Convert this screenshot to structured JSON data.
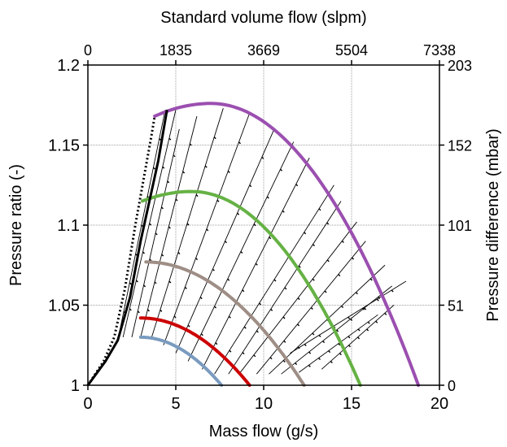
{
  "chart_data": {
    "type": "line",
    "xlabel": "Mass flow (g/s)",
    "ylabel": "Pressure ratio (-)",
    "x2label": "Standard volume flow (slpm)",
    "y2label": "Pressure difference (mbar)",
    "xlim": [
      0,
      20
    ],
    "ylim": [
      1,
      1.2
    ],
    "xticks": [
      0,
      5,
      10,
      15,
      20
    ],
    "xtick_labels": [
      "0",
      "5",
      "10",
      "15",
      "20"
    ],
    "yticks": [
      1,
      1.05,
      1.1,
      1.15,
      1.2
    ],
    "ytick_labels": [
      "1",
      "1.05",
      "1.1",
      "1.15",
      "1.2"
    ],
    "x2tick_labels": [
      "0",
      "1835",
      "3669",
      "5504",
      "7338"
    ],
    "y2tick_labels": [
      "0",
      "51",
      "101",
      "152",
      "203"
    ],
    "grid": true,
    "speed_lines": [
      {
        "color": "#7a9bbf",
        "peak": [
          3.0,
          1.03
        ],
        "end": [
          7.6,
          1.0
        ]
      },
      {
        "color": "#cc0000",
        "peak": [
          3.0,
          1.042
        ],
        "end": [
          9.2,
          1.0
        ]
      },
      {
        "color": "#9e8e86",
        "peak": [
          3.3,
          1.077
        ],
        "end": [
          12.3,
          1.0
        ]
      },
      {
        "color": "#66b245",
        "peak": [
          3.1,
          1.115
        ],
        "peak_x": 5.9,
        "peak_y": 1.121,
        "end": [
          15.5,
          1.0
        ]
      },
      {
        "color": "#9b4fb0",
        "peak": [
          3.8,
          1.168
        ],
        "peak_x": 7.0,
        "peak_y": 1.176,
        "end": [
          18.8,
          1.0
        ]
      }
    ],
    "surge_lines": [
      {
        "style": "solid",
        "width": 3,
        "x": [
          0,
          1.0,
          1.7,
          2.4,
          3.0,
          4.0,
          4.5
        ],
        "y": [
          1,
          1.015,
          1.028,
          1.055,
          1.09,
          1.14,
          1.172
        ]
      },
      {
        "style": "dotted",
        "width": 3,
        "x": [
          0,
          0.9,
          1.5,
          2.1,
          2.7,
          3.6,
          3.8
        ],
        "y": [
          1,
          1.015,
          1.03,
          1.06,
          1.1,
          1.155,
          1.168
        ]
      }
    ],
    "throttle_lines": [
      {
        "from": [
          1.7,
          1.028
        ],
        "to": [
          4.4,
          1.172
        ]
      },
      {
        "from": [
          2.0,
          1.03
        ],
        "to": [
          5.0,
          1.172
        ]
      },
      {
        "from": [
          2.5,
          1.03
        ],
        "to": [
          5.2,
          1.16
        ]
      },
      {
        "from": [
          3.0,
          1.03
        ],
        "to": [
          6.2,
          1.168
        ]
      },
      {
        "from": [
          3.6,
          1.029
        ],
        "to": [
          7.7,
          1.173
        ]
      },
      {
        "from": [
          4.3,
          1.025
        ],
        "to": [
          9.2,
          1.17
        ]
      },
      {
        "from": [
          5.0,
          1.02
        ],
        "to": [
          10.6,
          1.16
        ]
      },
      {
        "from": [
          5.7,
          1.015
        ],
        "to": [
          11.7,
          1.152
        ]
      },
      {
        "from": [
          6.5,
          1.01
        ],
        "to": [
          12.6,
          1.142
        ]
      },
      {
        "from": [
          7.2,
          1.007
        ],
        "to": [
          14.0,
          1.125
        ]
      },
      {
        "from": [
          8.0,
          1.007
        ],
        "to": [
          14.4,
          1.115
        ]
      },
      {
        "from": [
          8.6,
          1.007
        ],
        "to": [
          15.3,
          1.102
        ]
      },
      {
        "from": [
          9.6,
          1.007
        ],
        "to": [
          15.8,
          1.09
        ]
      },
      {
        "from": [
          10.3,
          1.007
        ],
        "to": [
          16.9,
          1.075
        ]
      },
      {
        "from": [
          11.0,
          1.007
        ],
        "to": [
          17.3,
          1.062
        ]
      },
      {
        "from": [
          12.0,
          1.008
        ],
        "to": [
          16.5,
          1.044
        ]
      },
      {
        "from": [
          13.3,
          1.01
        ],
        "to": [
          17.4,
          1.05
        ]
      },
      {
        "from": [
          11.5,
          1.02
        ],
        "to": [
          18.1,
          1.065
        ]
      }
    ]
  }
}
